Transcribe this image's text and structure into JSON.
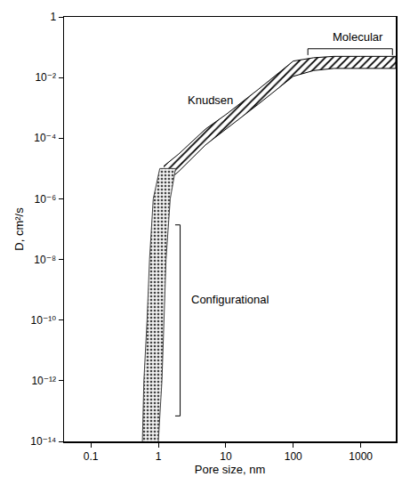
{
  "chart_data": {
    "type": "band",
    "xlabel": "Pore size, nm",
    "ylabel": "D, cm²/s",
    "log": true,
    "grid": false,
    "xlim": [
      0.04,
      3300
    ],
    "ylim": [
      1e-14,
      1
    ],
    "xticks": [
      0.1,
      1,
      10,
      100,
      1000
    ],
    "yticks": [
      1,
      {
        "value": 0.01,
        "label": "10⁻²"
      },
      {
        "value": 0.0001,
        "label": "10⁻⁴"
      },
      {
        "value": 1e-06,
        "label": "10⁻⁶"
      },
      {
        "value": 1e-08,
        "label": "10⁻⁸"
      },
      {
        "value": 1e-10,
        "label": "10⁻¹⁰"
      },
      {
        "value": 1e-12,
        "label": "10⁻¹²"
      },
      {
        "value": 1e-14,
        "label": "10⁻¹⁴"
      }
    ],
    "bands": [
      {
        "marker": "hatched",
        "x": [
          1.2,
          2,
          5,
          10,
          30,
          100,
          200,
          400,
          1000,
          3300
        ],
        "upper": [
          1.2e-05,
          3e-05,
          0.0002,
          0.0006,
          0.004,
          0.035,
          0.045,
          0.05,
          0.05,
          0.05
        ],
        "lower": [
          3e-06,
          8e-06,
          6e-05,
          0.0002,
          0.0013,
          0.011,
          0.017,
          0.02,
          0.02,
          0.02
        ]
      },
      {
        "marker": "dotted",
        "y": [
          1e-14,
          1e-12,
          1e-10,
          1e-08,
          1e-06,
          1e-05
        ],
        "x_lower": [
          0.58,
          0.61,
          0.68,
          0.74,
          0.84,
          1.05
        ],
        "x_upper": [
          1.0,
          1.13,
          1.2,
          1.3,
          1.5,
          1.8
        ]
      }
    ],
    "annotations": [
      {
        "text": "Molecular"
      },
      {
        "text": "Knudsen"
      },
      {
        "text": "Configurational"
      }
    ]
  }
}
